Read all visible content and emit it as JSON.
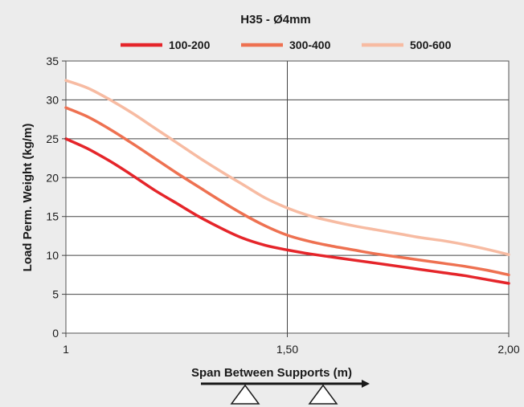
{
  "chart_data": {
    "type": "line",
    "title": "H35 - Ø4mm",
    "xlabel": "Span Between Supports (m)",
    "ylabel": "Load Perm. Weight (kg/m)",
    "xlim": [
      1,
      2
    ],
    "ylim": [
      0,
      35
    ],
    "x_ticks": [
      {
        "value": 1,
        "label": "1"
      },
      {
        "value": 1.5,
        "label": "1,50"
      },
      {
        "value": 2,
        "label": "2,00"
      }
    ],
    "y_ticks": [
      0,
      5,
      10,
      15,
      20,
      25,
      30,
      35
    ],
    "grid": true,
    "legend_position": "top",
    "series": [
      {
        "name": "100-200",
        "color": "#e5252a",
        "x": [
          1.0,
          1.05,
          1.1,
          1.15,
          1.2,
          1.25,
          1.3,
          1.35,
          1.4,
          1.45,
          1.5,
          1.55,
          1.6,
          1.65,
          1.7,
          1.75,
          1.8,
          1.85,
          1.9,
          1.95,
          2.0
        ],
        "y": [
          25.0,
          23.7,
          22.1,
          20.3,
          18.4,
          16.7,
          15.0,
          13.5,
          12.2,
          11.3,
          10.7,
          10.2,
          9.8,
          9.4,
          9.0,
          8.6,
          8.2,
          7.8,
          7.4,
          6.9,
          6.4
        ]
      },
      {
        "name": "300-400",
        "color": "#ee7151",
        "x": [
          1.0,
          1.05,
          1.1,
          1.15,
          1.2,
          1.25,
          1.3,
          1.35,
          1.4,
          1.45,
          1.5,
          1.55,
          1.6,
          1.65,
          1.7,
          1.75,
          1.8,
          1.85,
          1.9,
          1.95,
          2.0
        ],
        "y": [
          29.0,
          27.8,
          26.2,
          24.4,
          22.5,
          20.6,
          18.8,
          17.0,
          15.3,
          13.8,
          12.6,
          11.8,
          11.2,
          10.7,
          10.2,
          9.8,
          9.4,
          9.0,
          8.6,
          8.1,
          7.5
        ]
      },
      {
        "name": "500-600",
        "color": "#f7bba2",
        "x": [
          1.0,
          1.05,
          1.1,
          1.15,
          1.2,
          1.25,
          1.3,
          1.35,
          1.4,
          1.45,
          1.5,
          1.55,
          1.6,
          1.65,
          1.7,
          1.75,
          1.8,
          1.85,
          1.9,
          1.95,
          2.0
        ],
        "y": [
          32.5,
          31.5,
          30.0,
          28.3,
          26.4,
          24.5,
          22.6,
          20.8,
          19.1,
          17.4,
          16.1,
          15.1,
          14.4,
          13.8,
          13.3,
          12.8,
          12.3,
          11.9,
          11.4,
          10.8,
          10.1
        ]
      }
    ]
  }
}
